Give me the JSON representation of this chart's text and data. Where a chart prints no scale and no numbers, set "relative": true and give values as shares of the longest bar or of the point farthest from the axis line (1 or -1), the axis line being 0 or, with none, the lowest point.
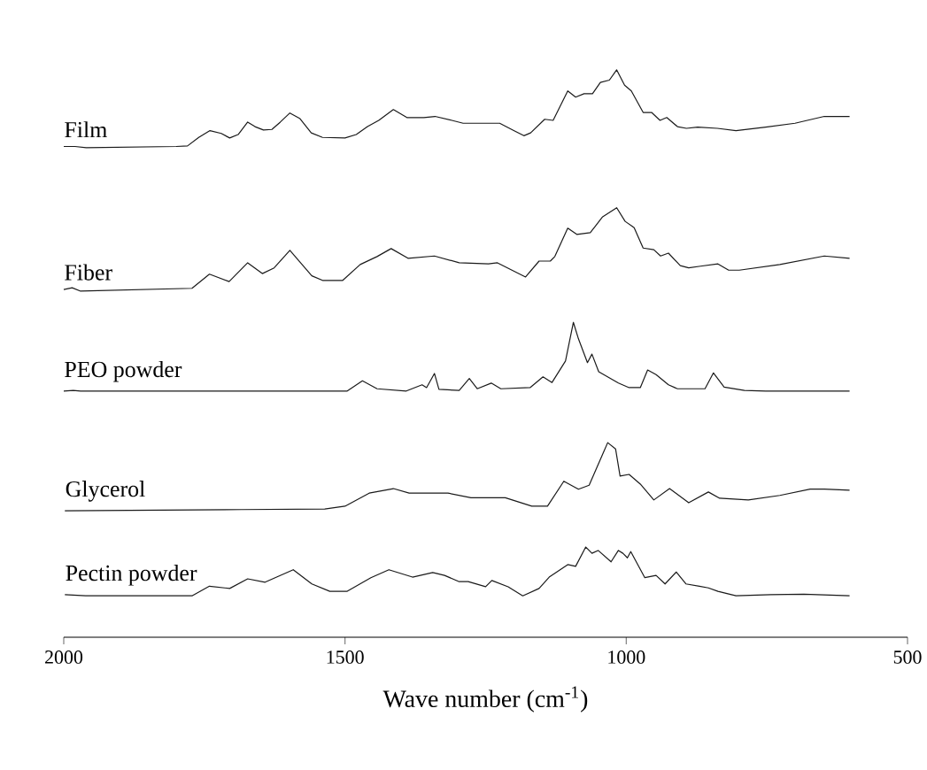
{
  "chart_data": {
    "type": "line",
    "relative": true,
    "xlabel": "Wave number (cm$^{-1}$)",
    "xlim": [
      2000,
      500
    ],
    "xticks": [
      2000,
      1500,
      1000,
      500
    ],
    "series": [
      {
        "name": "Film",
        "color": "#1a1a1a",
        "x": [
          2000,
          1980,
          1960,
          1800,
          1780,
          1760,
          1740,
          1720,
          1705,
          1690,
          1673,
          1660,
          1645,
          1630,
          1615,
          1598,
          1580,
          1560,
          1540,
          1500,
          1480,
          1460,
          1440,
          1414,
          1390,
          1360,
          1340,
          1310,
          1290,
          1245,
          1225,
          1200,
          1182,
          1170,
          1145,
          1130,
          1104,
          1090,
          1075,
          1060,
          1046,
          1030,
          1017,
          1003,
          991,
          970,
          955,
          940,
          928,
          909,
          893,
          873,
          838,
          805,
          752,
          700,
          648,
          603
        ],
        "values": [
          0.865,
          0.865,
          0.863,
          0.865,
          0.866,
          0.881,
          0.893,
          0.888,
          0.88,
          0.886,
          0.908,
          0.9,
          0.894,
          0.895,
          0.908,
          0.924,
          0.914,
          0.889,
          0.881,
          0.88,
          0.886,
          0.9,
          0.911,
          0.93,
          0.916,
          0.916,
          0.918,
          0.911,
          0.906,
          0.906,
          0.906,
          0.893,
          0.884,
          0.889,
          0.913,
          0.911,
          0.963,
          0.952,
          0.958,
          0.958,
          0.978,
          0.982,
          1,
          0.973,
          0.963,
          0.925,
          0.925,
          0.911,
          0.916,
          0.9,
          0.897,
          0.899,
          0.897,
          0.893,
          0.899,
          0.906,
          0.918,
          0.918
        ]
      },
      {
        "name": "Fiber",
        "color": "#1a1a1a",
        "x": [
          2000,
          1985,
          1970,
          1772,
          1741,
          1706,
          1673,
          1647,
          1626,
          1598,
          1559,
          1540,
          1504,
          1473,
          1443,
          1418,
          1388,
          1341,
          1297,
          1245,
          1229,
          1179,
          1155,
          1135,
          1127,
          1104,
          1088,
          1064,
          1042,
          1017,
          1002,
          986,
          970,
          951,
          939,
          925,
          904,
          889,
          868,
          837,
          818,
          799,
          727,
          648,
          603
        ],
        "values": [
          0.613,
          0.616,
          0.61,
          0.615,
          0.64,
          0.627,
          0.66,
          0.641,
          0.651,
          0.682,
          0.637,
          0.629,
          0.629,
          0.657,
          0.671,
          0.685,
          0.668,
          0.672,
          0.66,
          0.658,
          0.66,
          0.635,
          0.663,
          0.663,
          0.671,
          0.721,
          0.71,
          0.713,
          0.741,
          0.757,
          0.733,
          0.722,
          0.686,
          0.683,
          0.672,
          0.677,
          0.655,
          0.651,
          0.654,
          0.658,
          0.647,
          0.647,
          0.657,
          0.672,
          0.668
        ]
      },
      {
        "name": "PEO powder",
        "color": "#1a1a1a",
        "x": [
          2000,
          1983,
          1970,
          1496,
          1469,
          1443,
          1391,
          1363,
          1355,
          1341,
          1333,
          1297,
          1279,
          1265,
          1240,
          1223,
          1171,
          1148,
          1132,
          1108,
          1094,
          1085,
          1069,
          1061,
          1049,
          1014,
          995,
          975,
          962,
          947,
          925,
          909,
          860,
          845,
          826,
          790,
          752,
          603
        ],
        "values": [
          0.434,
          0.435,
          0.434,
          0.434,
          0.452,
          0.438,
          0.434,
          0.445,
          0.44,
          0.465,
          0.437,
          0.435,
          0.456,
          0.438,
          0.448,
          0.438,
          0.44,
          0.459,
          0.449,
          0.487,
          0.555,
          0.526,
          0.484,
          0.499,
          0.468,
          0.448,
          0.44,
          0.44,
          0.471,
          0.463,
          0.445,
          0.438,
          0.438,
          0.466,
          0.441,
          0.435,
          0.434,
          0.434
        ]
      },
      {
        "name": "Glycerol",
        "color": "#1a1a1a",
        "x": [
          1998,
          1684,
          1536,
          1500,
          1457,
          1414,
          1386,
          1317,
          1276,
          1215,
          1168,
          1140,
          1111,
          1085,
          1066,
          1033,
          1019,
          1011,
          995,
          975,
          951,
          923,
          889,
          854,
          834,
          783,
          727,
          673,
          648,
          603
        ],
        "values": [
          0.223,
          0.225,
          0.226,
          0.231,
          0.254,
          0.262,
          0.254,
          0.254,
          0.246,
          0.246,
          0.231,
          0.231,
          0.275,
          0.261,
          0.268,
          0.343,
          0.332,
          0.284,
          0.287,
          0.27,
          0.242,
          0.262,
          0.237,
          0.256,
          0.245,
          0.242,
          0.25,
          0.261,
          0.261,
          0.259
        ]
      },
      {
        "name": "Pectin powder",
        "color": "#1a1a1a",
        "x": [
          1998,
          1961,
          1862,
          1772,
          1741,
          1705,
          1673,
          1642,
          1592,
          1559,
          1527,
          1496,
          1454,
          1422,
          1380,
          1344,
          1323,
          1297,
          1281,
          1250,
          1239,
          1210,
          1184,
          1155,
          1137,
          1104,
          1090,
          1072,
          1061,
          1050,
          1027,
          1014,
          1006,
          998,
          992,
          967,
          947,
          931,
          911,
          894,
          870,
          854,
          837,
          805,
          743,
          684,
          603
        ],
        "values": [
          0.075,
          0.073,
          0.073,
          0.073,
          0.09,
          0.086,
          0.103,
          0.097,
          0.119,
          0.094,
          0.081,
          0.081,
          0.105,
          0.119,
          0.106,
          0.114,
          0.109,
          0.098,
          0.098,
          0.089,
          0.1,
          0.089,
          0.073,
          0.086,
          0.106,
          0.128,
          0.125,
          0.159,
          0.148,
          0.153,
          0.133,
          0.153,
          0.148,
          0.14,
          0.151,
          0.105,
          0.109,
          0.094,
          0.115,
          0.094,
          0.09,
          0.087,
          0.081,
          0.073,
          0.075,
          0.076,
          0.073
        ]
      }
    ]
  }
}
